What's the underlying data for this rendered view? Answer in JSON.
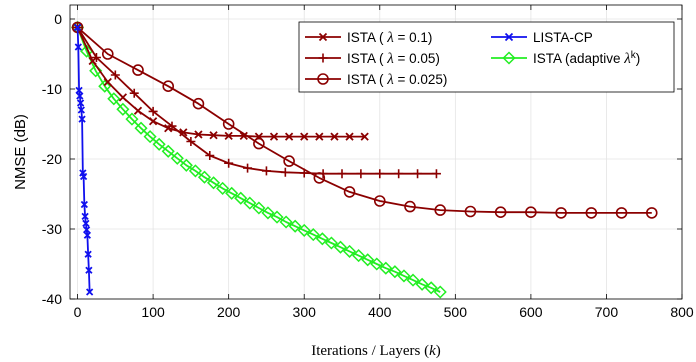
{
  "chart_data": {
    "type": "line",
    "xlabel": "Iterations / Layers (k)",
    "ylabel": "NMSE (dB)",
    "xlim": [
      -10,
      800
    ],
    "ylim": [
      -40,
      2
    ],
    "xticks": [
      0,
      100,
      200,
      300,
      400,
      500,
      600,
      700,
      800
    ],
    "yticks": [
      0,
      -10,
      -20,
      -30,
      -40
    ],
    "xtick_labels": [
      "0",
      "100",
      "200",
      "300",
      "400",
      "500",
      "600",
      "700",
      "800"
    ],
    "ytick_labels": [
      "0",
      "-10",
      "-20",
      "-30",
      "-40"
    ],
    "grid": true,
    "legend_position": "top-right",
    "series": [
      {
        "name": "ISTA ( λ = 0.1)",
        "color": "#8b0000",
        "marker": "x",
        "x": [
          0,
          20,
          40,
          60,
          80,
          100,
          120,
          140,
          160,
          180,
          200,
          220,
          240,
          260,
          280,
          300,
          320,
          340,
          360,
          380
        ],
        "y": [
          -1.2,
          -6.0,
          -9.0,
          -11.2,
          -13.1,
          -14.6,
          -15.6,
          -16.2,
          -16.5,
          -16.6,
          -16.7,
          -16.7,
          -16.8,
          -16.8,
          -16.8,
          -16.8,
          -16.8,
          -16.8,
          -16.8,
          -16.8
        ]
      },
      {
        "name": "ISTA ( λ = 0.05)",
        "color": "#8b0000",
        "marker": "+",
        "x": [
          0,
          25,
          50,
          75,
          100,
          125,
          150,
          175,
          200,
          225,
          250,
          275,
          300,
          325,
          350,
          375,
          400,
          425,
          450,
          475
        ],
        "y": [
          -1.2,
          -5.5,
          -8.0,
          -10.6,
          -13.2,
          -15.3,
          -17.5,
          -19.5,
          -20.6,
          -21.3,
          -21.7,
          -21.9,
          -22.0,
          -22.1,
          -22.1,
          -22.1,
          -22.1,
          -22.1,
          -22.1,
          -22.1
        ]
      },
      {
        "name": "ISTA ( λ = 0.025)",
        "color": "#8b0000",
        "marker": "o",
        "x": [
          0,
          40,
          80,
          120,
          160,
          200,
          240,
          280,
          320,
          360,
          400,
          440,
          480,
          520,
          560,
          600,
          640,
          680,
          720,
          760
        ],
        "y": [
          -1.2,
          -5.0,
          -7.3,
          -9.6,
          -12.1,
          -15.0,
          -17.8,
          -20.3,
          -22.7,
          -24.7,
          -26.0,
          -26.8,
          -27.3,
          -27.5,
          -27.6,
          -27.6,
          -27.7,
          -27.7,
          -27.7,
          -27.7
        ]
      },
      {
        "name": "LISTA-CP",
        "color": "#1010ee",
        "marker": "x",
        "x": [
          0,
          1,
          2,
          3,
          4,
          5,
          6,
          7,
          8,
          9,
          10,
          11,
          12,
          13,
          14,
          15,
          16
        ],
        "y": [
          -1.2,
          -4.0,
          -10.2,
          -11.0,
          -12.0,
          -13.0,
          -14.3,
          -22.0,
          -22.5,
          -26.5,
          -28.2,
          -29.2,
          -30.1,
          -30.9,
          -33.6,
          -35.9,
          -39.0
        ]
      },
      {
        "name": "ISTA (adaptive  λ^k)",
        "color": "#22ee22",
        "marker": "diamond",
        "x": [
          0,
          12,
          24,
          36,
          48,
          60,
          72,
          84,
          96,
          108,
          120,
          132,
          144,
          156,
          168,
          180,
          192,
          204,
          216,
          228,
          240,
          252,
          264,
          276,
          288,
          300,
          312,
          324,
          336,
          348,
          360,
          372,
          384,
          396,
          408,
          420,
          432,
          444,
          456,
          468,
          480
        ],
        "y": [
          -1.2,
          -4.6,
          -7.4,
          -9.6,
          -11.4,
          -12.9,
          -14.3,
          -15.6,
          -16.8,
          -17.9,
          -18.9,
          -19.9,
          -20.9,
          -21.7,
          -22.6,
          -23.4,
          -24.2,
          -24.9,
          -25.6,
          -26.3,
          -27.0,
          -27.7,
          -28.3,
          -29.0,
          -29.6,
          -30.2,
          -30.8,
          -31.4,
          -32.0,
          -32.6,
          -33.2,
          -33.8,
          -34.4,
          -35.0,
          -35.6,
          -36.1,
          -36.7,
          -37.3,
          -37.9,
          -38.4,
          -39.0
        ]
      }
    ]
  }
}
